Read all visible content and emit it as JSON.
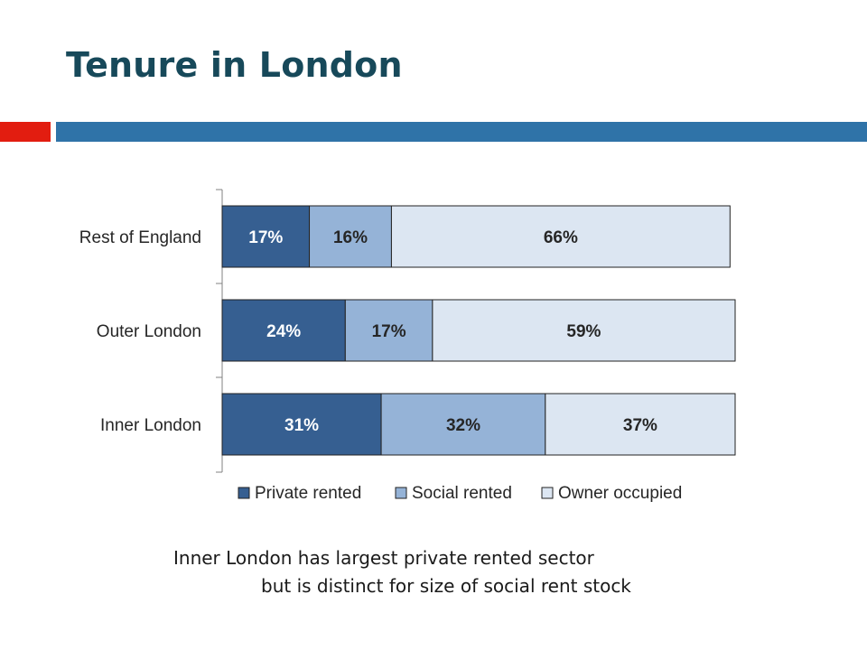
{
  "slide": {
    "title": "Tenure in London",
    "caption_line1": "Inner London has largest private rented sector",
    "caption_line2": "but is distinct for size of social rent stock"
  },
  "colors": {
    "title": "#17495a",
    "accent_red": "#e21d10",
    "accent_blue": "#2f73a8"
  },
  "chart_data": {
    "type": "bar",
    "orientation": "horizontal",
    "stacked": true,
    "categories": [
      "Rest of England",
      "Outer London",
      "Inner London"
    ],
    "series": [
      {
        "name": "Private rented",
        "values": [
          17,
          24,
          31
        ],
        "labels": [
          "17%",
          "24%",
          "31%"
        ],
        "color": "#365f91"
      },
      {
        "name": "Social rented",
        "values": [
          16,
          17,
          32
        ],
        "labels": [
          "16%",
          "17%",
          "32%"
        ],
        "color": "#95b3d7"
      },
      {
        "name": "Owner occupied",
        "values": [
          66,
          59,
          37
        ],
        "labels": [
          "66%",
          "59%",
          "37%"
        ],
        "color": "#dce6f2"
      }
    ],
    "xlim": [
      0,
      100
    ],
    "legend": "bottom",
    "grid": false
  }
}
